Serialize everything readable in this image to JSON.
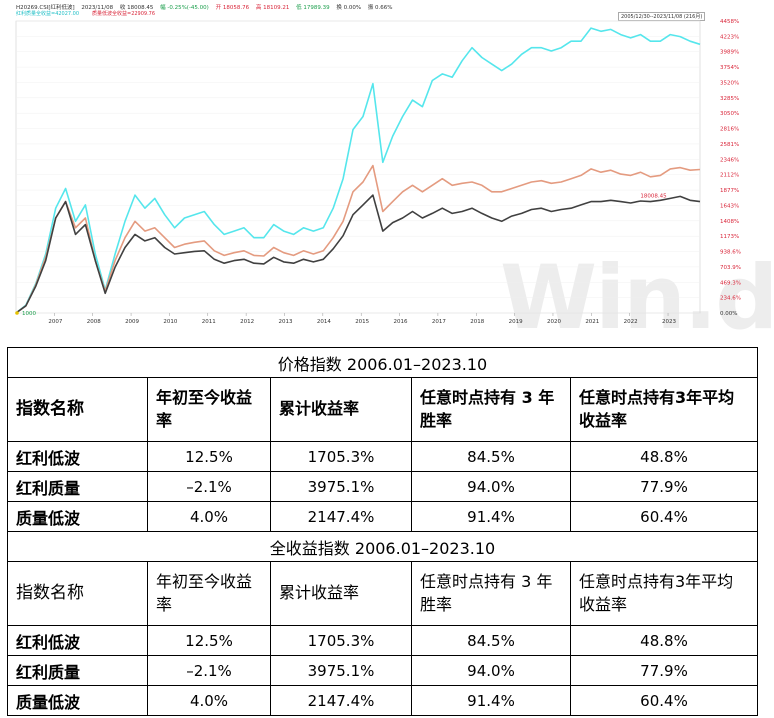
{
  "chart_header": {
    "code": "H20269.CSI[红利低波]",
    "date": "2023/11/08",
    "close": "收 18008.45",
    "change": "幅 -0.25%(-45.00)",
    "open": "开 18058.76",
    "high": "高 18109.21",
    "low": "低 17989.39",
    "turnover": "换 0.00%",
    "amplitude": "振 0.66%"
  },
  "legend": {
    "cyan": "红利质量全收益=42027.00",
    "salmon": "质量低波全收益=22909.76"
  },
  "date_range": "2005/12/30--2023/11/08 (216月)",
  "watermark": "Win.d",
  "start_marker": "1000",
  "last_value_label": "18008.45",
  "colors": {
    "cyan": "#55e6ec",
    "salmon": "#e49b80",
    "black": "#404040"
  },
  "chart_data": {
    "type": "line",
    "x": [
      "2006-01",
      "2006-07",
      "2007-01",
      "2007-04",
      "2007-07",
      "2007-10",
      "2008-01",
      "2008-04",
      "2008-07",
      "2008-10",
      "2009-01",
      "2009-04",
      "2009-07",
      "2009-10",
      "2010-01",
      "2010-04",
      "2010-07",
      "2010-10",
      "2011-01",
      "2011-04",
      "2011-07",
      "2011-10",
      "2012-01",
      "2012-04",
      "2012-07",
      "2012-10",
      "2013-01",
      "2013-04",
      "2013-07",
      "2013-10",
      "2014-01",
      "2014-04",
      "2014-07",
      "2014-10",
      "2015-01",
      "2015-04",
      "2015-06",
      "2015-09",
      "2016-01",
      "2016-04",
      "2016-07",
      "2016-10",
      "2017-01",
      "2017-04",
      "2017-07",
      "2017-10",
      "2018-01",
      "2018-04",
      "2018-07",
      "2018-10",
      "2019-01",
      "2019-04",
      "2019-07",
      "2019-10",
      "2020-01",
      "2020-04",
      "2020-07",
      "2020-10",
      "2021-01",
      "2021-04",
      "2021-07",
      "2021-10",
      "2022-01",
      "2022-04",
      "2022-07",
      "2022-10",
      "2023-01",
      "2023-04",
      "2023-07",
      "2023-11"
    ],
    "y_tick_labels": [
      "0.00%",
      "234.6%",
      "469.3%",
      "703.9%",
      "938.6%",
      "1173%",
      "1408%",
      "1643%",
      "1877%",
      "2112%",
      "2346%",
      "2581%",
      "2816%",
      "3050%",
      "3285%",
      "3520%",
      "3754%",
      "3989%",
      "4223%",
      "4458%"
    ],
    "series": [
      {
        "name": "红利质量全收益",
        "color": "cyan",
        "values": [
          0,
          120,
          450,
          900,
          1600,
          1900,
          1400,
          1650,
          900,
          350,
          900,
          1400,
          1800,
          1600,
          1750,
          1500,
          1300,
          1450,
          1500,
          1550,
          1350,
          1200,
          1250,
          1300,
          1150,
          1150,
          1350,
          1250,
          1200,
          1300,
          1250,
          1300,
          1600,
          2050,
          2800,
          3000,
          3500,
          2300,
          2700,
          3000,
          3250,
          3150,
          3550,
          3650,
          3600,
          3850,
          4050,
          3900,
          3800,
          3700,
          3800,
          3950,
          4050,
          4050,
          4000,
          4050,
          4150,
          4150,
          4350,
          4300,
          4330,
          4250,
          4200,
          4250,
          4150,
          4150,
          4250,
          4220,
          4150,
          4102
        ]
      },
      {
        "name": "质量低波全收益",
        "color": "salmon",
        "values": [
          0,
          110,
          430,
          850,
          1450,
          1700,
          1300,
          1450,
          800,
          330,
          800,
          1150,
          1400,
          1250,
          1300,
          1150,
          1000,
          1050,
          1080,
          1100,
          950,
          880,
          920,
          950,
          880,
          870,
          1000,
          920,
          880,
          950,
          900,
          950,
          1150,
          1400,
          1850,
          2000,
          2250,
          1550,
          1700,
          1850,
          1950,
          1850,
          1950,
          2050,
          1950,
          1980,
          2000,
          1950,
          1850,
          1850,
          1900,
          1950,
          2000,
          2020,
          1980,
          2000,
          2050,
          2100,
          2200,
          2150,
          2180,
          2120,
          2100,
          2150,
          2080,
          2100,
          2200,
          2220,
          2180,
          2191
        ]
      },
      {
        "name": "红利低波",
        "color": "black",
        "values": [
          0,
          110,
          410,
          800,
          1450,
          1700,
          1200,
          1350,
          800,
          300,
          700,
          1000,
          1200,
          1100,
          1150,
          1000,
          900,
          920,
          940,
          950,
          820,
          760,
          800,
          820,
          760,
          750,
          850,
          780,
          760,
          820,
          780,
          820,
          980,
          1180,
          1500,
          1650,
          1800,
          1250,
          1380,
          1450,
          1550,
          1450,
          1520,
          1600,
          1520,
          1550,
          1600,
          1520,
          1450,
          1400,
          1480,
          1520,
          1580,
          1600,
          1550,
          1580,
          1600,
          1650,
          1700,
          1700,
          1720,
          1700,
          1680,
          1710,
          1700,
          1720,
          1750,
          1780,
          1720,
          1701
        ]
      }
    ],
    "ylim": [
      0,
      4458
    ],
    "x_tick_labels": [
      "2007",
      "2008",
      "2009",
      "2010",
      "2011",
      "2012",
      "2013",
      "2014",
      "2015",
      "2016",
      "2017",
      "2018",
      "2019",
      "2020",
      "2021",
      "2022",
      "2023"
    ]
  },
  "table": {
    "columns": [
      "指数名称",
      "年初至今收益率",
      "累计收益率",
      "任意时点持有 3 年胜率",
      "任意时点持有3年平均收益率"
    ],
    "sections": [
      {
        "title": "价格指数 2006.01–2023.10",
        "rows": [
          [
            "红利低波",
            "12.5%",
            "1705.3%",
            "84.5%",
            "48.8%"
          ],
          [
            "红利质量",
            "–2.1%",
            "3975.1%",
            "94.0%",
            "77.9%"
          ],
          [
            "质量低波",
            "4.0%",
            "2147.4%",
            "91.4%",
            "60.4%"
          ]
        ]
      },
      {
        "title": "全收益指数 2006.01–2023.10",
        "rows": [
          [
            "红利低波",
            "12.5%",
            "1705.3%",
            "84.5%",
            "48.8%"
          ],
          [
            "红利质量",
            "–2.1%",
            "3975.1%",
            "94.0%",
            "77.9%"
          ],
          [
            "质量低波",
            "4.0%",
            "2147.4%",
            "91.4%",
            "60.4%"
          ]
        ]
      }
    ]
  }
}
